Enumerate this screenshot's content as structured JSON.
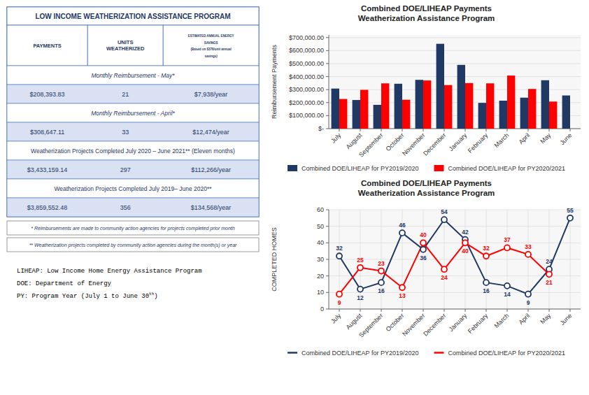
{
  "chart_data": [
    {
      "type": "table",
      "title": "LOW INCOME WEATHERIZATION ASSISTANCE PROGRAM",
      "categories": [
        "PAYMENTS",
        "UNITS\nWEATHERIZED",
        "ESTIMATED ANNUAL ENERGY\nSAVINGS\n(Based on $378/unit annual\nsavings)"
      ],
      "series": [
        {
          "name": "Monthly Reimbursement - May*",
          "values": [
            208393.83,
            21,
            7938
          ],
          "value_labels": [
            "$208,393.83",
            "21",
            "$7,938/year"
          ]
        },
        {
          "name": "Monthly Reimbursement - April*",
          "values": [
            308647.11,
            33,
            12474
          ],
          "value_labels": [
            "$308,647.11",
            "33",
            "$12,474/year"
          ]
        },
        {
          "name": "Weatherization Projects Completed July 2020 – June 2021** (Eleven months)",
          "values": [
            3433159.14,
            297,
            112266
          ],
          "value_labels": [
            "$3,433,159.14",
            "297",
            "$112,266/year"
          ]
        },
        {
          "name": "Weatherization Projects Completed July 2019– June 2020**",
          "values": [
            3859552.48,
            356,
            134568
          ],
          "value_labels": [
            "$3,859,552.48",
            "356",
            "$134,568/year"
          ]
        }
      ],
      "annotations": [
        "* Reimbursements are made to community action agencies for projects completed prior month",
        "** Weatherization projects completed by community action agencies during the month(s) or year",
        "LIHEAP: Low Income Home Energy Assistance Program",
        "DOE: Department of Energy",
        {
          "text": "PY: Program Year (July 1 to June 30",
          "superscript": "th",
          "end": ")"
        }
      ]
    },
    {
      "type": "bar",
      "title": "Combined DOE/LIHEAP Payments\nWeatherization Assistance Program",
      "y_label": "Reimbursement Payments",
      "categories": [
        "July",
        "August",
        "September",
        "October",
        "November",
        "December",
        "January",
        "February",
        "March",
        "April",
        "May",
        "June"
      ],
      "series": [
        {
          "name": "Combined DOE/LIHEAP for PY2019/2020",
          "color": "#1F3864",
          "values": [
            308000,
            220000,
            183000,
            345000,
            375000,
            652000,
            490000,
            198000,
            215000,
            238000,
            372000,
            255000
          ]
        },
        {
          "name": "Combined DOE/LIHEAP for PY2020/2021",
          "color": "#FF0000",
          "values": [
            228000,
            298000,
            348000,
            222000,
            370000,
            335000,
            350000,
            348000,
            408000,
            305000,
            208000,
            0
          ]
        }
      ],
      "ylim": [
        0,
        720000
      ],
      "yticks": [
        {
          "value": 0,
          "label": "$-"
        },
        {
          "value": 100000,
          "label": "$100,000.00"
        },
        {
          "value": 200000,
          "label": "$200,000.00"
        },
        {
          "value": 300000,
          "label": "$300,000.00"
        },
        {
          "value": 400000,
          "label": "$400,000.00"
        },
        {
          "value": 500000,
          "label": "$500,000.00"
        },
        {
          "value": 600000,
          "label": "$600,000.00"
        },
        {
          "value": 700000,
          "label": "$700,000.00"
        }
      ],
      "grid": "y",
      "legend": "bottom"
    },
    {
      "type": "line",
      "title": "Combined DOE/LIHEAP Payments\nWeatherization Assistance Program",
      "y_label": "COMPLETED HOMES",
      "categories": [
        "July",
        "August",
        "September",
        "October",
        "November",
        "December",
        "January",
        "February",
        "March",
        "April",
        "May",
        "June"
      ],
      "series": [
        {
          "name": "Combined DOE/LIHEAP for PY2019/2020",
          "color": "#1F3864",
          "marker": "circle",
          "values": [
            32,
            12,
            16,
            46,
            36,
            54,
            42,
            16,
            14,
            9,
            24,
            55
          ]
        },
        {
          "name": "Combined DOE/LIHEAP for PY2020/2021",
          "color": "#FF0000",
          "marker": "circle",
          "values": [
            9,
            25,
            23,
            13,
            40,
            24,
            40,
            32,
            37,
            33,
            21,
            null
          ]
        }
      ],
      "ylim": [
        0,
        60
      ],
      "yticks": [
        0,
        10,
        20,
        30,
        40,
        50,
        60
      ],
      "grid": true,
      "data_labels": true,
      "legend": "bottom"
    }
  ]
}
